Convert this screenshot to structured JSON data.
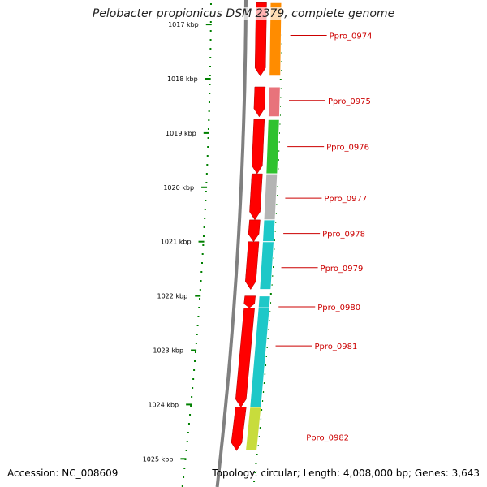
{
  "title": "Pelobacter propionicus DSM 2379, complete genome",
  "footer": {
    "accession": "Accession: NC_008609",
    "summary": "Topology: circular; Length: 4,008,000 bp; Genes: 3,643"
  },
  "kbp_ticks": [
    {
      "kbp": 1017,
      "label": "1017 kbp"
    },
    {
      "kbp": 1018,
      "label": "1018 kbp"
    },
    {
      "kbp": 1019,
      "label": "1019 kbp"
    },
    {
      "kbp": 1020,
      "label": "1020 kbp"
    },
    {
      "kbp": 1021,
      "label": "1021 kbp"
    },
    {
      "kbp": 1022,
      "label": "1022 kbp"
    },
    {
      "kbp": 1023,
      "label": "1023 kbp"
    },
    {
      "kbp": 1024,
      "label": "1024 kbp"
    },
    {
      "kbp": 1025,
      "label": "1025 kbp"
    }
  ],
  "genes": [
    {
      "label": "Ppro_0974",
      "start": 1016.6,
      "end": 1017.95,
      "cog_color": "#ff8c00",
      "label_kbp": 1017.2
    },
    {
      "label": "Ppro_0975",
      "start": 1018.15,
      "end": 1018.7,
      "cog_color": "#e8737b",
      "label_kbp": 1018.4
    },
    {
      "label": "Ppro_0976",
      "start": 1018.75,
      "end": 1019.75,
      "cog_color": "#2fc22f",
      "label_kbp": 1019.25
    },
    {
      "label": "Ppro_0977",
      "start": 1019.75,
      "end": 1020.6,
      "cog_color": "#b4b4b4",
      "label_kbp": 1020.2
    },
    {
      "label": "Ppro_0978",
      "start": 1020.6,
      "end": 1021.0,
      "cog_color": "#1ec8c8",
      "label_kbp": 1020.85
    },
    {
      "label": "Ppro_0979",
      "start": 1021.0,
      "end": 1021.88,
      "cog_color": "#1ec8c8",
      "label_kbp": 1021.48
    },
    {
      "label": "Ppro_0980",
      "start": 1022.0,
      "end": 1022.22,
      "cog_color": "#1ec8c8",
      "label_kbp": 1022.2
    },
    {
      "label": "Ppro_0981",
      "start": 1022.22,
      "end": 1024.05,
      "cog_color": "#1ec8c8",
      "label_kbp": 1022.92
    },
    {
      "label": "Ppro_0982",
      "start": 1024.05,
      "end": 1024.85,
      "cog_color": "#c8dc3c",
      "label_kbp": 1024.6
    }
  ],
  "colors": {
    "cds": "#ff0000",
    "backbone": "#808080",
    "label": "#cc0000",
    "tick": "#008000"
  }
}
